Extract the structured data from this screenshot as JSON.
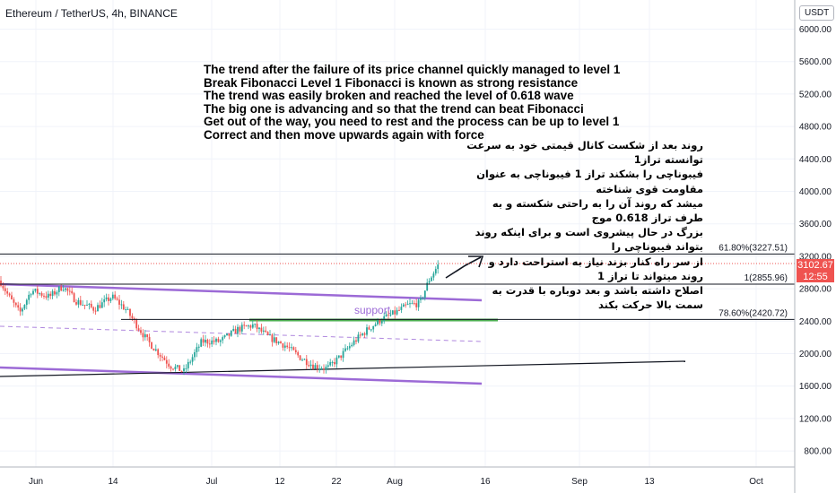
{
  "header": {
    "title": "Ethereum / TetherUS, 4h, BINANCE",
    "currency": "USDT"
  },
  "price_badge": {
    "price": "3102.67",
    "countdown": "12:55",
    "color": "#ef5350"
  },
  "annotation_en": [
    "The trend after the failure of its price channel quickly managed to level 1",
    "Break Fibonacci Level 1 Fibonacci is known as strong resistance",
    "The trend was easily broken and reached the level of 0.618 wave",
    "The big one is advancing and so that the trend can beat Fibonacci",
    "Get out of the way, you need to rest and the process can be up to level 1",
    "Correct and then move upwards again with force"
  ],
  "annotation_fa": [
    "روند بعد از شکست کانال قیمتی خود به سرعت توانسته تراز1",
    "فیبوناچی را بشکند تراز 1 فیبوناچی به عنوان مقاومت قوی شناخته",
    "میشد که روند آن را به راحتی شکسته و به طرف تراز 0.618 موج",
    "بزرگ در حال پیشروی است و برای اینکه روند بتواند فیبوناچی را",
    "از سر راه کنار بزند نیاز به استراحت دارد و روند میتواند تا تراز 1",
    "اصلاح داشته باشد و بعد دوباره با قدرت به سمت بالا حرکت بکند"
  ],
  "chart_data": {
    "type": "candlestick",
    "title": "Ethereum / TetherUS, 4h, BINANCE",
    "y_axis": {
      "position": "right",
      "range": [
        600,
        6200
      ],
      "ticks": [
        "6000.00",
        "5600.00",
        "5200.00",
        "4800.00",
        "4400.00",
        "4000.00",
        "3600.00",
        "3200.00",
        "2800.00",
        "2400.00",
        "2000.00",
        "1600.00",
        "1200.00",
        "800.00"
      ]
    },
    "x_axis": {
      "ticks": [
        "Jun",
        "14",
        "Jul",
        "12",
        "22",
        "Aug",
        "16",
        "Sep",
        "13",
        "Oct"
      ]
    },
    "fib_levels": [
      {
        "label": "61.80%(3227.51)",
        "value": 3227.51
      },
      {
        "label": "1(2855.96)",
        "value": 2855.96
      },
      {
        "label": "78.60%(2420.72)",
        "value": 2420.72
      }
    ],
    "support_label": "support",
    "current_price": 3102.67,
    "colors": {
      "up": "#26a69a",
      "down": "#ef5350",
      "channel": "#9c6ad6",
      "support": "#4caf50",
      "grid": "#f0f3fa"
    }
  }
}
